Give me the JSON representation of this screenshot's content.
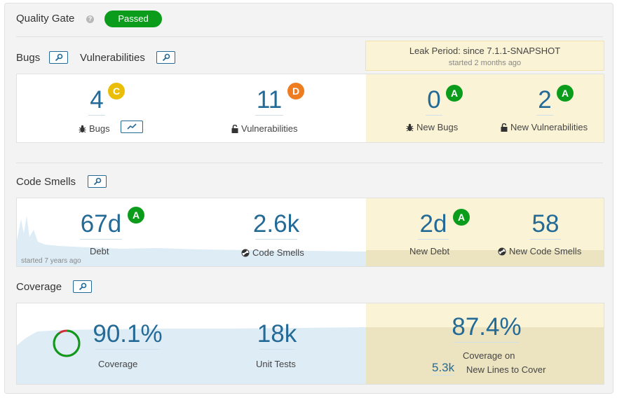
{
  "quality_gate": {
    "title": "Quality Gate",
    "help": "?",
    "status": "Passed",
    "status_color": "#0a9c1a"
  },
  "bugs_section": {
    "bugs_title": "Bugs",
    "vulnerabilities_title": "Vulnerabilities"
  },
  "leak_period": {
    "title": "Leak Period: since 7.1.1-SNAPSHOT",
    "subtitle": "started 2 months ago"
  },
  "bugs": {
    "value": "4",
    "rating": "C",
    "label": "Bugs",
    "icon": "bug-icon"
  },
  "vulnerabilities": {
    "value": "11",
    "rating": "D",
    "label": "Vulnerabilities",
    "icon": "lock-icon"
  },
  "new_bugs": {
    "value": "0",
    "rating": "A",
    "label": "New Bugs"
  },
  "new_vulnerabilities": {
    "value": "2",
    "rating": "A",
    "label": "New Vulnerabilities"
  },
  "code_smells_section": {
    "title": "Code Smells"
  },
  "debt": {
    "value": "67d",
    "rating": "A",
    "label": "Debt",
    "history_note": "started 7 years ago"
  },
  "code_smells": {
    "value": "2.6k",
    "label": "Code Smells",
    "icon": "radiation-icon"
  },
  "new_debt": {
    "value": "2d",
    "rating": "A",
    "label": "New Debt"
  },
  "new_code_smells": {
    "value": "58",
    "label": "New Code Smells"
  },
  "coverage_section": {
    "title": "Coverage"
  },
  "coverage": {
    "value": "90.1%",
    "label": "Coverage",
    "fraction": 0.901
  },
  "unit_tests": {
    "value": "18k",
    "label": "Unit Tests"
  },
  "new_coverage": {
    "value": "87.4%",
    "label": "Coverage on",
    "lines_value": "5.3k",
    "lines_label": "New Lines to Cover"
  },
  "colors": {
    "accent": "#236a97",
    "rating_a": "#0a9c1a",
    "rating_c": "#eabe06",
    "rating_d": "#ed7d20",
    "leak_bg": "#fbf3d5"
  }
}
